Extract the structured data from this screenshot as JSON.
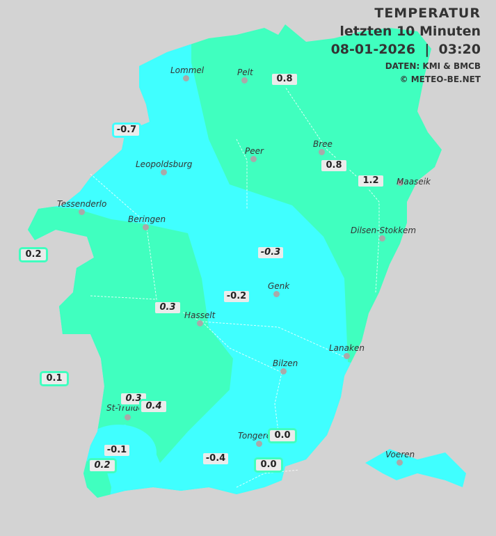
{
  "header": {
    "title": "TEMPERATUR",
    "subtitle": "letzten 10 Minuten",
    "datetime": "08-01-2026  |  03:20",
    "source": "DATEN: KMI & BMCB",
    "copyright": "© METEO-BE.NET"
  },
  "colors": {
    "background": "#d3d3d3",
    "band_0_to_2": "#40ffbf",
    "band_minus1_to_0": "#40ffff",
    "label_bg": "#ebebeb"
  },
  "cities": [
    "Lommel",
    "Pelt",
    "Peer",
    "Bree",
    "Maaseik",
    "Leopoldsburg",
    "Tessenderlo",
    "Beringen",
    "Dilsen-Stokkem",
    "Genk",
    "Hasselt",
    "Lanaken",
    "Bilzen",
    "St-Truiden",
    "Tongeren",
    "Voeren"
  ],
  "stations": [
    {
      "value": "0.8",
      "italic": false
    },
    {
      "value": "-0.7",
      "italic": false
    },
    {
      "value": "0.8",
      "italic": false
    },
    {
      "value": "1.2",
      "italic": false
    },
    {
      "value": "0.2",
      "italic": false
    },
    {
      "value": "-0.3",
      "italic": true
    },
    {
      "value": "-0.2",
      "italic": false
    },
    {
      "value": "0.3",
      "italic": true
    },
    {
      "value": "0.1",
      "italic": false
    },
    {
      "value": "0.3",
      "italic": true
    },
    {
      "value": "0.4",
      "italic": true
    },
    {
      "value": "0.0",
      "italic": false
    },
    {
      "value": "-0.1",
      "italic": false
    },
    {
      "value": "0.2",
      "italic": true
    },
    {
      "value": "-0.4",
      "italic": false
    },
    {
      "value": "0.0",
      "italic": false
    }
  ]
}
